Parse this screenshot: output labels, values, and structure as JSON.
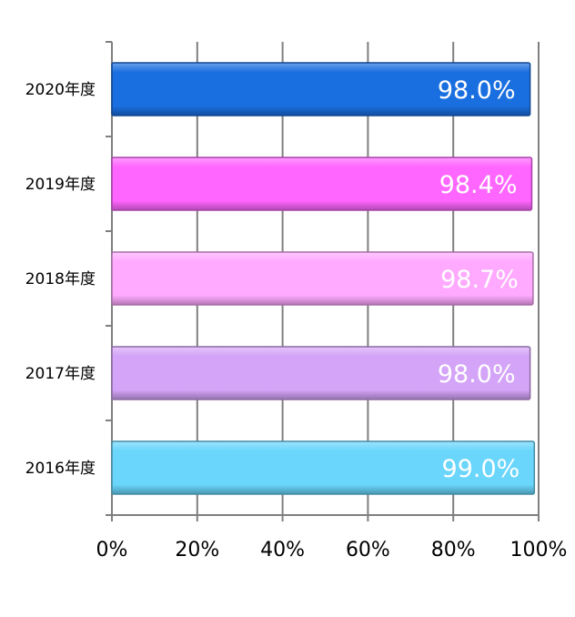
{
  "chart_data": {
    "type": "bar",
    "orientation": "horizontal",
    "categories": [
      "2020年度",
      "2019年度",
      "2018年度",
      "2017年度",
      "2016年度"
    ],
    "values": [
      98.0,
      98.4,
      98.7,
      98.0,
      99.0
    ],
    "value_labels": [
      "98.0%",
      "98.4%",
      "98.7%",
      "98.0%",
      "99.0%"
    ],
    "bar_colors": [
      "#1a6fe0",
      "#ff66ff",
      "#ffaaff",
      "#d4a4f8",
      "#6ad6fb"
    ],
    "xlim": [
      0,
      100
    ],
    "xticks": [
      0,
      20,
      40,
      60,
      80,
      100
    ],
    "xtick_labels": [
      "0%",
      "20%",
      "40%",
      "60%",
      "80%",
      "100%"
    ],
    "grid": true,
    "legend": false,
    "title": "",
    "xlabel": "",
    "ylabel": ""
  }
}
